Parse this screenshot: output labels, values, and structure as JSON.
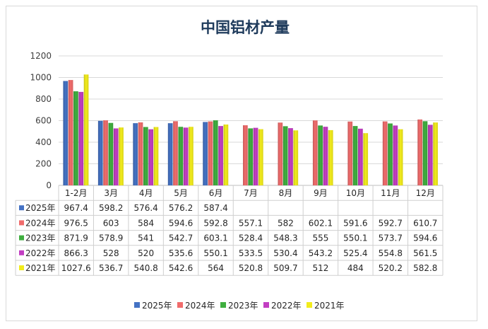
{
  "chart_data": {
    "type": "bar",
    "title": "中国铝材产量",
    "categories": [
      "1-2月",
      "3月",
      "4月",
      "5月",
      "6月",
      "7月",
      "8月",
      "9月",
      "10月",
      "11月",
      "12月"
    ],
    "ylim": [
      0,
      1200
    ],
    "yticks": [
      0,
      200,
      400,
      600,
      800,
      1000,
      1200
    ],
    "grid": true,
    "legend_position": "bottom",
    "series": [
      {
        "name": "2025年",
        "color": "#4472c4",
        "values": [
          967.4,
          598.2,
          576.4,
          576.2,
          587.4,
          null,
          null,
          null,
          null,
          null,
          null
        ],
        "labels": [
          "967.4",
          "598.2",
          "576.4",
          "576.2",
          "587.4",
          "",
          "",
          "",
          "",
          "",
          ""
        ]
      },
      {
        "name": "2024年",
        "color": "#f06c6c",
        "values": [
          976.5,
          603,
          584,
          594.6,
          592.8,
          557.1,
          582,
          602.1,
          591.6,
          592.7,
          610.7
        ],
        "labels": [
          "976.5",
          "603",
          "584",
          "594.6",
          "592.8",
          "557.1",
          "582",
          "602.1",
          "591.6",
          "592.7",
          "610.7"
        ]
      },
      {
        "name": "2023年",
        "color": "#3fae3f",
        "values": [
          871.9,
          578.9,
          541,
          542.7,
          603.1,
          528.4,
          548.3,
          555,
          550.1,
          573.7,
          594.6
        ],
        "labels": [
          "871.9",
          "578.9",
          "541",
          "542.7",
          "603.1",
          "528.4",
          "548.3",
          "555",
          "550.1",
          "573.7",
          "594.6"
        ]
      },
      {
        "name": "2022年",
        "color": "#c23ec2",
        "values": [
          866.3,
          528,
          520,
          535.6,
          550.1,
          533.5,
          530.4,
          543.2,
          525.4,
          554.8,
          561.5
        ],
        "labels": [
          "866.3",
          "528",
          "520",
          "535.6",
          "550.1",
          "533.5",
          "530.4",
          "543.2",
          "525.4",
          "554.8",
          "561.5"
        ]
      },
      {
        "name": "2021年",
        "color": "#f2ec1c",
        "values": [
          1027.6,
          536.7,
          540.8,
          542.6,
          564,
          520.8,
          509.7,
          512,
          484,
          520.2,
          582.8
        ],
        "labels": [
          "1027.6",
          "536.7",
          "540.8",
          "542.6",
          "564",
          "520.8",
          "509.7",
          "512",
          "484",
          "520.2",
          "582.8"
        ]
      }
    ]
  }
}
